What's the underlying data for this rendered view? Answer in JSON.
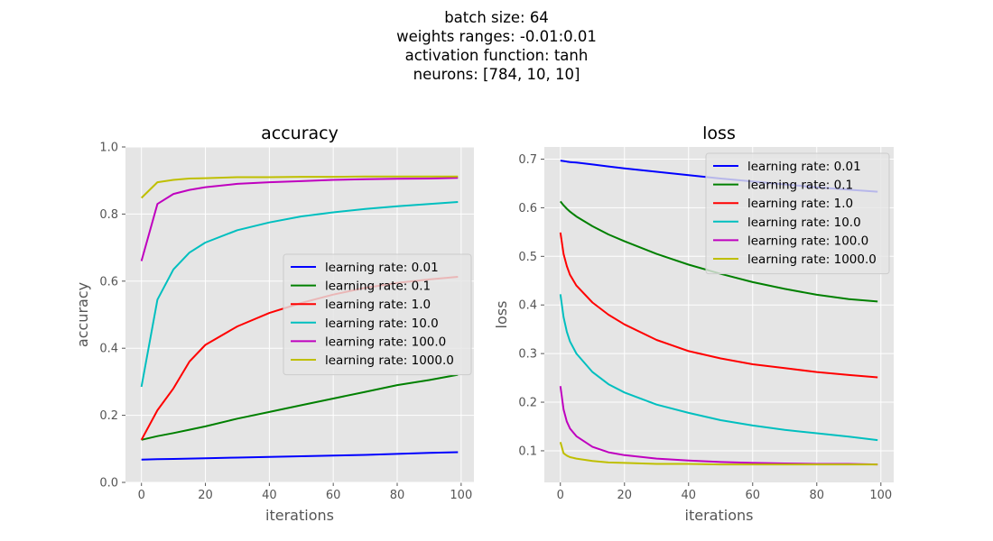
{
  "figure": {
    "title_lines": [
      "batch size: 64",
      "weights ranges: -0.01:0.01",
      "activation function: tanh",
      "neurons: [784, 10, 10]"
    ]
  },
  "colors": {
    "background": "#E5E5E5",
    "grid": "#FFFFFF",
    "series": [
      "#0000FF",
      "#008000",
      "#FF0000",
      "#00BFBF",
      "#BF00BF",
      "#BFBF00"
    ]
  },
  "chart_data": [
    {
      "type": "line",
      "title": "accuracy",
      "xlabel": "iterations",
      "ylabel": "accuracy",
      "xlim": [
        -5,
        104
      ],
      "ylim": [
        0.0,
        1.0
      ],
      "xticks": [
        0,
        20,
        40,
        60,
        80,
        100
      ],
      "yticks": [
        0.0,
        0.2,
        0.4,
        0.6,
        0.8,
        1.0
      ],
      "ytick_labels": [
        "0.0",
        "0.2",
        "0.4",
        "0.6",
        "0.8",
        "1.0"
      ],
      "grid": true,
      "legend": "center-right",
      "x": [
        0,
        5,
        10,
        15,
        20,
        30,
        40,
        50,
        60,
        70,
        80,
        90,
        99
      ],
      "series": [
        {
          "name": "learning rate: 0.01",
          "values": [
            0.068,
            0.069,
            0.07,
            0.071,
            0.072,
            0.074,
            0.076,
            0.078,
            0.08,
            0.082,
            0.085,
            0.088,
            0.09
          ]
        },
        {
          "name": "learning rate: 0.1",
          "values": [
            0.127,
            0.138,
            0.147,
            0.157,
            0.167,
            0.19,
            0.21,
            0.23,
            0.25,
            0.27,
            0.29,
            0.305,
            0.321
          ]
        },
        {
          "name": "learning rate: 1.0",
          "values": [
            0.127,
            0.215,
            0.28,
            0.36,
            0.41,
            0.465,
            0.505,
            0.535,
            0.56,
            0.58,
            0.595,
            0.605,
            0.613
          ]
        },
        {
          "name": "learning rate: 10.0",
          "values": [
            0.285,
            0.545,
            0.635,
            0.685,
            0.715,
            0.752,
            0.775,
            0.793,
            0.805,
            0.815,
            0.823,
            0.83,
            0.836
          ]
        },
        {
          "name": "learning rate: 100.0",
          "values": [
            0.66,
            0.83,
            0.86,
            0.872,
            0.88,
            0.89,
            0.895,
            0.898,
            0.902,
            0.904,
            0.905,
            0.906,
            0.908
          ]
        },
        {
          "name": "learning rate: 1000.0",
          "values": [
            0.848,
            0.895,
            0.902,
            0.906,
            0.907,
            0.91,
            0.91,
            0.911,
            0.911,
            0.912,
            0.912,
            0.912,
            0.912
          ]
        }
      ]
    },
    {
      "type": "line",
      "title": "loss",
      "xlabel": "iterations",
      "ylabel": "loss",
      "xlim": [
        -5,
        104
      ],
      "ylim": [
        0.035,
        0.725
      ],
      "xticks": [
        0,
        20,
        40,
        60,
        80,
        100
      ],
      "yticks": [
        0.1,
        0.2,
        0.3,
        0.4,
        0.5,
        0.6,
        0.7
      ],
      "ytick_labels": [
        "0.1",
        "0.2",
        "0.3",
        "0.4",
        "0.5",
        "0.6",
        "0.7"
      ],
      "grid": true,
      "legend": "top-right",
      "x": [
        0,
        1,
        2,
        3,
        5,
        10,
        15,
        20,
        30,
        40,
        50,
        60,
        70,
        80,
        90,
        99
      ],
      "series": [
        {
          "name": "learning rate: 0.01",
          "values": [
            0.697,
            0.696,
            0.695,
            0.694,
            0.693,
            0.689,
            0.685,
            0.681,
            0.674,
            0.667,
            0.66,
            0.654,
            0.648,
            0.642,
            0.637,
            0.633
          ]
        },
        {
          "name": "learning rate: 0.1",
          "values": [
            0.613,
            0.605,
            0.598,
            0.592,
            0.582,
            0.562,
            0.545,
            0.531,
            0.505,
            0.483,
            0.464,
            0.447,
            0.433,
            0.421,
            0.412,
            0.407
          ]
        },
        {
          "name": "learning rate: 1.0",
          "values": [
            0.549,
            0.505,
            0.48,
            0.462,
            0.44,
            0.405,
            0.38,
            0.36,
            0.328,
            0.305,
            0.29,
            0.278,
            0.27,
            0.262,
            0.256,
            0.251
          ]
        },
        {
          "name": "learning rate: 10.0",
          "values": [
            0.422,
            0.375,
            0.345,
            0.325,
            0.3,
            0.262,
            0.237,
            0.22,
            0.195,
            0.178,
            0.163,
            0.152,
            0.143,
            0.136,
            0.129,
            0.122
          ]
        },
        {
          "name": "learning rate: 100.0",
          "values": [
            0.233,
            0.185,
            0.16,
            0.146,
            0.13,
            0.108,
            0.097,
            0.091,
            0.084,
            0.08,
            0.077,
            0.075,
            0.074,
            0.073,
            0.073,
            0.072
          ]
        },
        {
          "name": "learning rate: 1000.0",
          "values": [
            0.118,
            0.095,
            0.09,
            0.087,
            0.084,
            0.079,
            0.076,
            0.075,
            0.073,
            0.073,
            0.072,
            0.072,
            0.072,
            0.072,
            0.072,
            0.072
          ]
        }
      ]
    }
  ]
}
